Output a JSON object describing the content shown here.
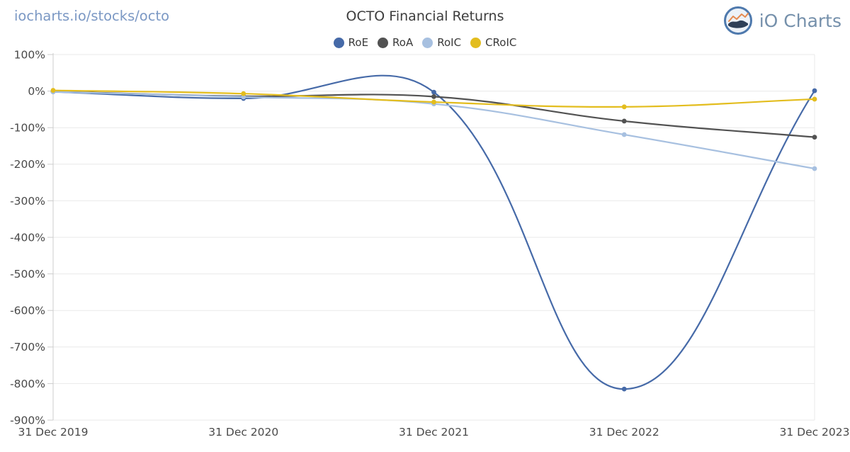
{
  "header": {
    "breadcrumb": "iocharts.io/stocks/octo",
    "title": "OCTO Financial Returns",
    "brand_name": "iO Charts"
  },
  "chart_data": {
    "type": "line",
    "line_style": "spline",
    "x": [
      "31 Dec 2019",
      "31 Dec 2020",
      "31 Dec 2021",
      "31 Dec 2022",
      "31 Dec 2023"
    ],
    "yticks": [
      "100%",
      "0%",
      "-100%",
      "-200%",
      "-300%",
      "-400%",
      "-500%",
      "-600%",
      "-700%",
      "-800%",
      "-900%"
    ],
    "ytick_values": [
      100,
      0,
      -100,
      -200,
      -300,
      -400,
      -500,
      -600,
      -700,
      -800,
      -900
    ],
    "ylim": [
      -900,
      100
    ],
    "grid": true,
    "legend_position": "top",
    "series": [
      {
        "name": "RoE",
        "color": "#466aa8",
        "values": [
          -2,
          -20,
          -3,
          -815,
          1
        ]
      },
      {
        "name": "RoA",
        "color": "#525252",
        "values": [
          -1,
          -14,
          -15,
          -82,
          -126
        ]
      },
      {
        "name": "RoIC",
        "color": "#a7c0e0",
        "values": [
          -2,
          -16,
          -35,
          -119,
          -212
        ]
      },
      {
        "name": "CRoIC",
        "color": "#e3bd1e",
        "values": [
          2,
          -7,
          -30,
          -43,
          -22
        ]
      }
    ],
    "title": "OCTO Financial Returns",
    "xlabel": "",
    "ylabel": ""
  },
  "colors": {
    "grid": "#e9e9e9",
    "axis": "#cccccc",
    "tick_label": "#4a4a4a",
    "link": "#7b98c4",
    "brand_text": "#7590ab"
  }
}
